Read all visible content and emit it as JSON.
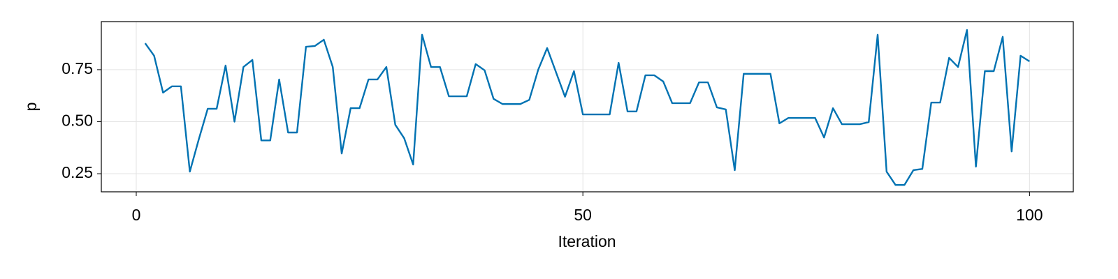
{
  "chart_data": {
    "type": "line",
    "x_label": "Iteration",
    "y_label": "p",
    "x": [
      1,
      2,
      3,
      4,
      5,
      6,
      7,
      8,
      9,
      10,
      11,
      12,
      13,
      14,
      15,
      16,
      17,
      18,
      19,
      20,
      21,
      22,
      23,
      24,
      25,
      26,
      27,
      28,
      29,
      30,
      31,
      32,
      33,
      34,
      35,
      36,
      37,
      38,
      39,
      40,
      41,
      42,
      43,
      44,
      45,
      46,
      47,
      48,
      49,
      50,
      51,
      52,
      53,
      54,
      55,
      56,
      57,
      58,
      59,
      60,
      61,
      62,
      63,
      64,
      65,
      66,
      67,
      68,
      69,
      70,
      71,
      72,
      73,
      74,
      75,
      76,
      77,
      78,
      79,
      80,
      81,
      82,
      83,
      84,
      85,
      86,
      87,
      88,
      89,
      90,
      91,
      92,
      93,
      94,
      95,
      96,
      97,
      98,
      99,
      100
    ],
    "series": [
      {
        "name": "p",
        "color": "#0072b2",
        "values": [
          0.877,
          0.817,
          0.64,
          0.67,
          0.67,
          0.26,
          0.415,
          0.562,
          0.562,
          0.77,
          0.5,
          0.763,
          0.797,
          0.41,
          0.41,
          0.703,
          0.448,
          0.448,
          0.86,
          0.864,
          0.894,
          0.763,
          0.347,
          0.565,
          0.565,
          0.703,
          0.703,
          0.763,
          0.485,
          0.42,
          0.294,
          0.918,
          0.763,
          0.763,
          0.622,
          0.622,
          0.622,
          0.777,
          0.747,
          0.61,
          0.585,
          0.585,
          0.585,
          0.605,
          0.75,
          0.854,
          0.737,
          0.62,
          0.743,
          0.535,
          0.535,
          0.535,
          0.535,
          0.783,
          0.549,
          0.549,
          0.723,
          0.723,
          0.693,
          0.589,
          0.589,
          0.589,
          0.689,
          0.689,
          0.569,
          0.559,
          0.267,
          0.73,
          0.73,
          0.73,
          0.73,
          0.492,
          0.518,
          0.518,
          0.518,
          0.518,
          0.424,
          0.565,
          0.488,
          0.488,
          0.488,
          0.498,
          0.918,
          0.26,
          0.196,
          0.196,
          0.267,
          0.273,
          0.592,
          0.592,
          0.807,
          0.763,
          0.941,
          0.284,
          0.743,
          0.743,
          0.908,
          0.357,
          0.817,
          0.79
        ]
      }
    ],
    "xlim": [
      -3.91,
      104.9
    ],
    "ylim": [
      0.163,
      0.981
    ],
    "xticks": [
      0,
      50,
      100
    ],
    "yticks": [
      0.25,
      {
        "value": 0.5,
        "label": "0.50"
      },
      0.75
    ],
    "grid": true
  }
}
